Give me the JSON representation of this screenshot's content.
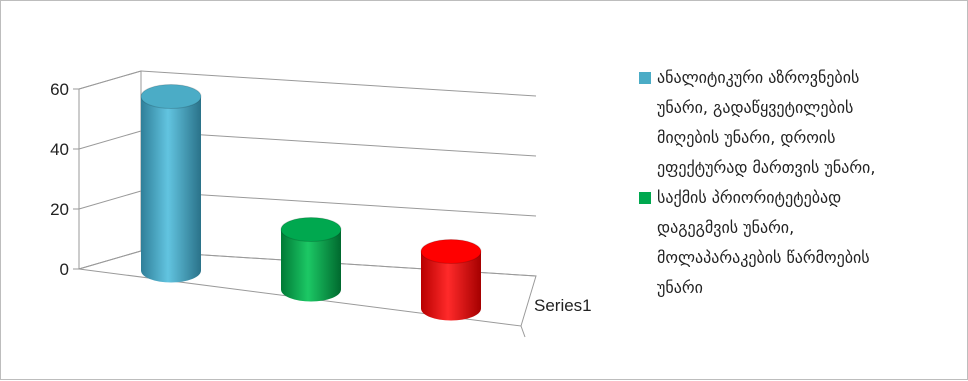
{
  "chart_data": {
    "type": "bar",
    "style": "3d-cylinder",
    "categories": [
      "Series1"
    ],
    "ylim": [
      0,
      60
    ],
    "yticks": [
      0,
      20,
      40,
      60
    ],
    "grid": true,
    "legend_position": "right",
    "series": [
      {
        "name": "ანალიტიკური აზროვნების\nუნარი, გადაწყვეტილების\nმიღების უნარი, დროის\nეფექტურად მართვის უნარი,",
        "values": [
          58
        ],
        "color": "#4bacc6"
      },
      {
        "name": "საქმის პრიორიტეტებად\nდაგეგმვის უნარი,\nმოლაპარაკების წარმოების\nუნარი",
        "values": [
          20
        ],
        "color": "#00a84f"
      },
      {
        "name": "",
        "values": [
          19
        ],
        "color": "#ff0000"
      }
    ]
  }
}
